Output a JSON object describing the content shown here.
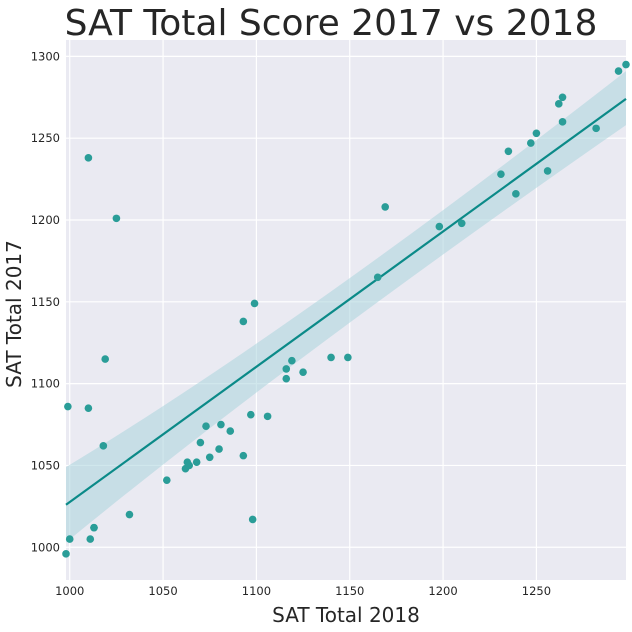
{
  "chart_data": {
    "type": "scatter",
    "title": "SAT Total Score 2017 vs 2018",
    "xlabel": "SAT Total 2018",
    "ylabel": "SAT Total 2017",
    "xlim": [
      998,
      1298
    ],
    "ylim": [
      980,
      1310
    ],
    "xticks": [
      1000,
      1050,
      1100,
      1150,
      1200,
      1250
    ],
    "yticks": [
      1000,
      1050,
      1100,
      1150,
      1200,
      1250,
      1300
    ],
    "grid": true,
    "background_color": "#eaeaf2",
    "point_color": "#2a9d98",
    "line_color": "#0b8a88",
    "band_color": "#a9d3dd",
    "x": [
      998,
      999,
      1000,
      1010,
      1010,
      1011,
      1013,
      1013,
      1018,
      1019,
      1025,
      1032,
      1052,
      1062,
      1063,
      1064,
      1068,
      1070,
      1073,
      1075,
      1080,
      1081,
      1086,
      1093,
      1093,
      1097,
      1098,
      1099,
      1106,
      1116,
      1116,
      1119,
      1125,
      1140,
      1149,
      1165,
      1169,
      1198,
      1210,
      1231,
      1235,
      1239,
      1247,
      1250,
      1256,
      1262,
      1264,
      1264,
      1282,
      1294,
      1298
    ],
    "y": [
      996,
      1086,
      1005,
      1085,
      1238,
      1005,
      1012,
      1012,
      1062,
      1115,
      1201,
      1020,
      1041,
      1048,
      1052,
      1050,
      1052,
      1064,
      1074,
      1055,
      1060,
      1075,
      1071,
      1138,
      1056,
      1081,
      1017,
      1149,
      1080,
      1109,
      1103,
      1114,
      1107,
      1116,
      1116,
      1165,
      1208,
      1196,
      1198,
      1228,
      1242,
      1216,
      1247,
      1253,
      1230,
      1271,
      1260,
      1275,
      1256,
      1291,
      1295
    ],
    "regression": {
      "x": [
        998,
        1298
      ],
      "y": [
        1026,
        1274
      ],
      "ci_lower": [
        1003,
        1258
      ],
      "ci_upper": [
        1049,
        1291
      ],
      "ci_mid_x": 1120,
      "ci_mid_lower": [
        1117,
        1133
      ]
    }
  }
}
